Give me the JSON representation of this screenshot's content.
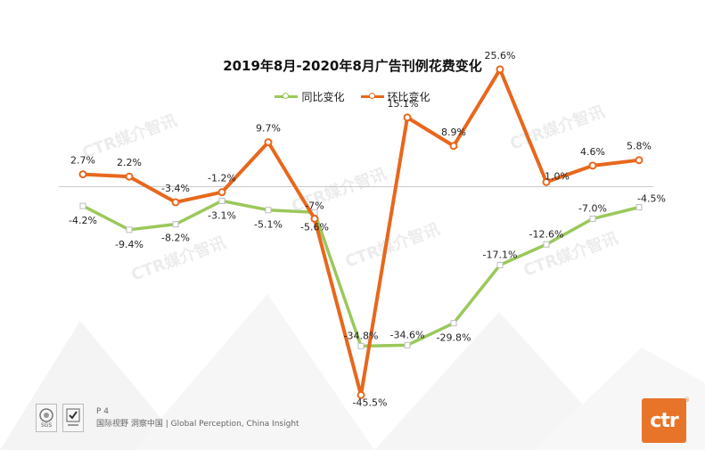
{
  "chart_data": {
    "type": "line",
    "title": "2019年8月-2020年8月广告刊例花费变化",
    "categories": [
      "",
      "",
      "",
      "",
      "",
      "",
      "",
      "",
      "",
      "",
      "",
      "",
      ""
    ],
    "ylim": [
      -55,
      35
    ],
    "grid": false,
    "legend_position": "top",
    "series": [
      {
        "name": "同比变化",
        "color": "#9bc85b",
        "values": [
          -4.2,
          -9.4,
          -8.2,
          -3.1,
          -5.1,
          -5.6,
          -34.8,
          -34.6,
          -29.8,
          -17.1,
          -12.6,
          -7.0,
          -4.5
        ],
        "labels": [
          "-4.2%",
          "-9.4%",
          "-8.2%",
          "-3.1%",
          "-5.1%",
          "-5.6%",
          "-34.8%",
          "-34.6%",
          "-29.8%",
          "-17.1%",
          "-12.6%",
          "-7.0%",
          "-4.5%"
        ]
      },
      {
        "name": "环比变化",
        "color": "#e8671c",
        "values": [
          2.7,
          2.2,
          -3.4,
          -1.2,
          9.7,
          -7,
          -45.5,
          15.1,
          8.9,
          25.6,
          1.0,
          4.6,
          5.8
        ],
        "labels": [
          "2.7%",
          "2.2%",
          "-3.4%",
          "-1.2%",
          "9.7%",
          "-7%",
          "-45.5%",
          "15.1%",
          "8.9%",
          "25.6%",
          "1.0%",
          "4.6%",
          "5.8%"
        ]
      }
    ]
  },
  "watermark": "CTR媒介智讯",
  "footer": {
    "page": "P 4",
    "tagline": "国际视野  洞察中国 |  Global Perception,  China Insight",
    "badge_caption": "SGS"
  },
  "logo": {
    "text": "ctr",
    "mark": "®"
  },
  "colors": {
    "accent": "#e8742a"
  }
}
